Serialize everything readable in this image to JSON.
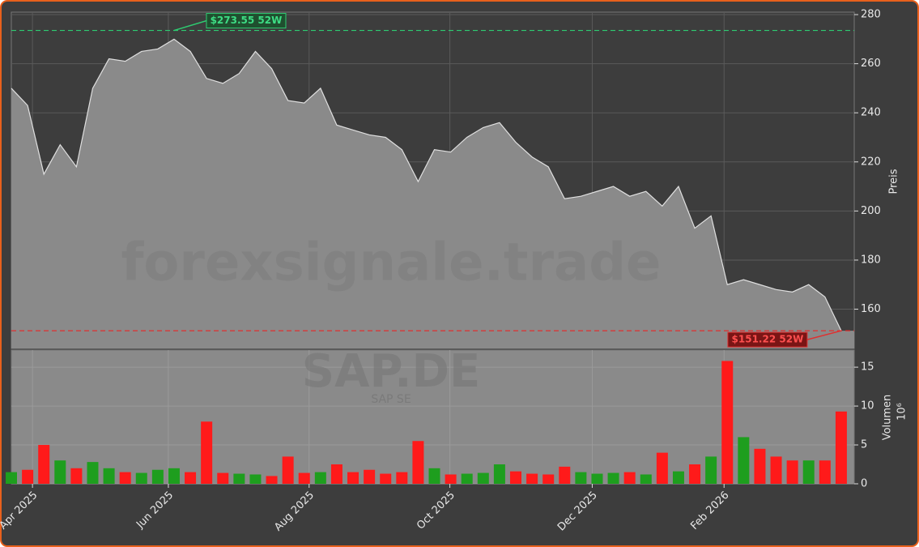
{
  "chart_data": [
    {
      "type": "area",
      "title": "SAP.DE",
      "subtitle": "SAP SE",
      "watermark": "forexsignale.trade",
      "ylabel": "Preis",
      "color": "#8a8a8a",
      "line_color": "#e0e0e0",
      "grid": true,
      "x": [
        0,
        1,
        2,
        3,
        4,
        5,
        6,
        7,
        8,
        9,
        10,
        11,
        12,
        13,
        14,
        15,
        16,
        17,
        18,
        19,
        20,
        21,
        22,
        23,
        24,
        25,
        26,
        27,
        28,
        29,
        30,
        31,
        32,
        33,
        34,
        35,
        36,
        37,
        38,
        39,
        40,
        41,
        42,
        43,
        44,
        45,
        46,
        47,
        48,
        49,
        50,
        51
      ],
      "values": [
        250,
        243,
        215,
        227,
        218,
        250,
        262,
        261,
        265,
        266,
        270,
        265,
        254,
        252,
        256,
        265,
        258,
        245,
        244,
        250,
        235,
        233,
        231,
        230,
        225,
        212,
        225,
        224,
        230,
        234,
        236,
        228,
        222,
        218,
        205,
        206,
        208,
        210,
        206,
        208,
        202,
        210,
        193,
        198,
        170,
        172,
        170,
        168,
        167,
        170,
        165,
        151.22
      ],
      "xlim": [
        0,
        51.8
      ],
      "xticks": [
        {
          "value": 1.3,
          "label": "Apr 2025"
        },
        {
          "value": 9.65,
          "label": "Jun 2025"
        },
        {
          "value": 18.3,
          "label": "Aug 2025"
        },
        {
          "value": 26.95,
          "label": "Oct 2025"
        },
        {
          "value": 35.7,
          "label": "Dec 2025"
        },
        {
          "value": 43.8,
          "label": "Feb 2026"
        }
      ],
      "ylim": [
        144,
        281
      ],
      "yticks": [
        160,
        180,
        200,
        220,
        240,
        260,
        280
      ],
      "reference_lines": [
        {
          "value": 273.55,
          "label": "$273.55 52W",
          "color": "#2ecc71",
          "at": 10
        },
        {
          "value": 151.22,
          "label": "$151.22 52W",
          "color": "#e03030",
          "at": 51
        }
      ]
    },
    {
      "type": "bar",
      "ylabel": "Volumen",
      "scale_label": "10⁶",
      "up_color": "#1e9e1e",
      "down_color": "#ff1a1a",
      "x": [
        0,
        1,
        2,
        3,
        4,
        5,
        6,
        7,
        8,
        9,
        10,
        11,
        12,
        13,
        14,
        15,
        16,
        17,
        18,
        19,
        20,
        21,
        22,
        23,
        24,
        25,
        26,
        27,
        28,
        29,
        30,
        31,
        32,
        33,
        34,
        35,
        36,
        37,
        38,
        39,
        40,
        41,
        42,
        43,
        44,
        45,
        46,
        47,
        48,
        49,
        50,
        51
      ],
      "values": [
        1.5,
        1.8,
        5,
        3,
        2,
        2.8,
        2,
        1.5,
        1.4,
        1.8,
        2,
        1.5,
        8,
        1.4,
        1.3,
        1.2,
        1,
        3.5,
        1.4,
        1.5,
        2.5,
        1.5,
        1.8,
        1.3,
        1.5,
        5.5,
        2,
        1.2,
        1.3,
        1.4,
        2.5,
        1.6,
        1.3,
        1.2,
        2.2,
        1.5,
        1.3,
        1.4,
        1.5,
        1.2,
        4,
        1.6,
        2.5,
        3.5,
        15.8,
        6,
        4.5,
        3.5,
        3,
        3,
        3,
        9.3
      ],
      "ylim": [
        0,
        17.2
      ],
      "yticks": [
        0,
        5,
        10,
        15
      ]
    }
  ]
}
